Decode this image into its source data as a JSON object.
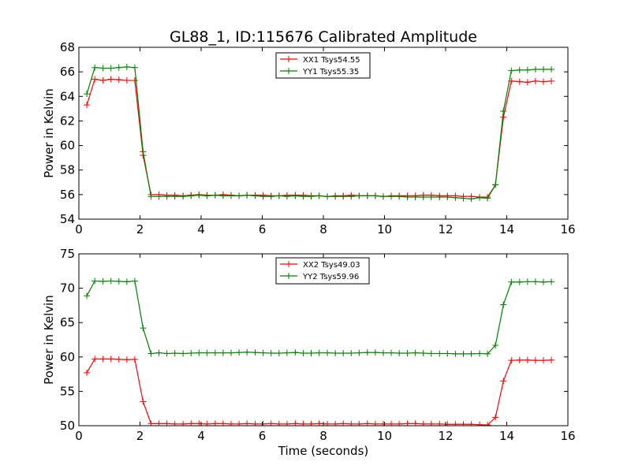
{
  "chart_data": [
    {
      "type": "line",
      "title": "GL88_1, ID:115676 Calibrated Amplitude",
      "xlabel": "",
      "ylabel": "Power in Kelvin",
      "xlim": [
        0,
        16
      ],
      "ylim": [
        54,
        68
      ],
      "xticks": [
        0,
        2,
        4,
        6,
        8,
        10,
        12,
        14,
        16
      ],
      "yticks": [
        54,
        56,
        58,
        60,
        62,
        64,
        66,
        68
      ],
      "legend_position": "top-center",
      "x": [
        0.26,
        0.52,
        0.79,
        1.05,
        1.31,
        1.57,
        1.83,
        2.1,
        2.36,
        2.62,
        2.88,
        3.14,
        3.41,
        3.67,
        3.93,
        4.19,
        4.46,
        4.72,
        4.98,
        5.24,
        5.5,
        5.77,
        6.03,
        6.29,
        6.55,
        6.81,
        7.08,
        7.34,
        7.6,
        7.86,
        8.13,
        8.39,
        8.65,
        8.91,
        9.17,
        9.44,
        9.7,
        9.96,
        10.22,
        10.48,
        10.75,
        11.01,
        11.27,
        11.53,
        11.8,
        12.06,
        12.32,
        12.58,
        12.84,
        13.11,
        13.37,
        13.63,
        13.89,
        14.15,
        14.42,
        14.68,
        14.94,
        15.2,
        15.46
      ],
      "series": [
        {
          "name": "XX1 Tsys54.55",
          "color": "#ff0000",
          "values": [
            63.3,
            65.4,
            65.3,
            65.4,
            65.35,
            65.3,
            65.3,
            59.2,
            56.0,
            56.0,
            55.95,
            55.95,
            55.9,
            55.95,
            56.0,
            55.95,
            55.95,
            56.0,
            55.95,
            55.9,
            55.95,
            55.95,
            55.95,
            55.9,
            55.9,
            55.95,
            55.95,
            55.95,
            55.9,
            55.9,
            55.85,
            55.9,
            55.9,
            55.95,
            55.9,
            55.9,
            55.9,
            55.85,
            55.9,
            55.9,
            55.9,
            55.9,
            55.95,
            55.95,
            55.9,
            55.9,
            55.9,
            55.85,
            55.85,
            55.8,
            55.8,
            56.8,
            62.3,
            65.25,
            65.2,
            65.15,
            65.25,
            65.2,
            65.25
          ]
        },
        {
          "name": "YY1 Tsys55.35",
          "color": "#008000",
          "values": [
            64.2,
            66.35,
            66.3,
            66.3,
            66.35,
            66.4,
            66.35,
            59.5,
            55.85,
            55.85,
            55.85,
            55.85,
            55.85,
            55.9,
            55.95,
            55.9,
            55.95,
            55.9,
            55.9,
            55.9,
            55.95,
            55.9,
            55.85,
            55.85,
            55.9,
            55.85,
            55.9,
            55.85,
            55.85,
            55.9,
            55.85,
            55.85,
            55.85,
            55.85,
            55.9,
            55.9,
            55.9,
            55.85,
            55.85,
            55.85,
            55.8,
            55.8,
            55.8,
            55.8,
            55.8,
            55.8,
            55.75,
            55.7,
            55.65,
            55.75,
            55.7,
            56.8,
            62.8,
            66.1,
            66.15,
            66.15,
            66.2,
            66.2,
            66.2
          ]
        }
      ]
    },
    {
      "type": "line",
      "title": "",
      "xlabel": "Time (seconds)",
      "ylabel": "Power in Kelvin",
      "xlim": [
        0,
        16
      ],
      "ylim": [
        50,
        75
      ],
      "xticks": [
        0,
        2,
        4,
        6,
        8,
        10,
        12,
        14,
        16
      ],
      "yticks": [
        50,
        55,
        60,
        65,
        70,
        75
      ],
      "legend_position": "top-center",
      "x": [
        0.26,
        0.52,
        0.79,
        1.05,
        1.31,
        1.57,
        1.83,
        2.1,
        2.36,
        2.62,
        2.88,
        3.14,
        3.41,
        3.67,
        3.93,
        4.19,
        4.46,
        4.72,
        4.98,
        5.24,
        5.5,
        5.77,
        6.03,
        6.29,
        6.55,
        6.81,
        7.08,
        7.34,
        7.6,
        7.86,
        8.13,
        8.39,
        8.65,
        8.91,
        9.17,
        9.44,
        9.7,
        9.96,
        10.22,
        10.48,
        10.75,
        11.01,
        11.27,
        11.53,
        11.8,
        12.06,
        12.32,
        12.58,
        12.84,
        13.11,
        13.37,
        13.63,
        13.89,
        14.15,
        14.42,
        14.68,
        14.94,
        15.2,
        15.46
      ],
      "series": [
        {
          "name": "XX2 Tsys49.03",
          "color": "#ff0000",
          "values": [
            57.7,
            59.7,
            59.7,
            59.7,
            59.65,
            59.6,
            59.65,
            53.5,
            50.3,
            50.3,
            50.3,
            50.25,
            50.25,
            50.3,
            50.3,
            50.25,
            50.3,
            50.3,
            50.25,
            50.25,
            50.3,
            50.25,
            50.25,
            50.3,
            50.25,
            50.25,
            50.3,
            50.25,
            50.25,
            50.3,
            50.25,
            50.25,
            50.3,
            50.25,
            50.25,
            50.3,
            50.25,
            50.25,
            50.25,
            50.25,
            50.3,
            50.3,
            50.25,
            50.25,
            50.25,
            50.2,
            50.2,
            50.2,
            50.2,
            50.15,
            50.1,
            51.2,
            56.5,
            59.5,
            59.55,
            59.55,
            59.5,
            59.5,
            59.55
          ]
        },
        {
          "name": "YY2 Tsys59.96",
          "color": "#008000",
          "values": [
            68.9,
            71.05,
            71.0,
            71.05,
            71.0,
            70.95,
            71.05,
            64.2,
            60.5,
            60.6,
            60.5,
            60.55,
            60.5,
            60.55,
            60.6,
            60.6,
            60.6,
            60.6,
            60.6,
            60.65,
            60.7,
            60.65,
            60.6,
            60.55,
            60.55,
            60.6,
            60.65,
            60.55,
            60.55,
            60.6,
            60.6,
            60.55,
            60.55,
            60.55,
            60.6,
            60.65,
            60.65,
            60.6,
            60.6,
            60.55,
            60.55,
            60.6,
            60.55,
            60.5,
            60.5,
            60.5,
            60.45,
            60.45,
            60.45,
            60.5,
            60.45,
            61.7,
            67.6,
            70.9,
            70.9,
            70.95,
            70.95,
            70.9,
            70.95
          ]
        }
      ]
    }
  ]
}
